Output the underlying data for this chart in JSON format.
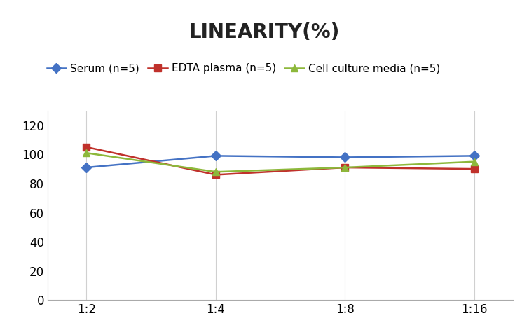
{
  "title": "LINEARITY(%)",
  "x_labels": [
    "1:2",
    "1:4",
    "1:8",
    "1:16"
  ],
  "x_positions": [
    0,
    1,
    2,
    3
  ],
  "series": [
    {
      "label": "Serum (n=5)",
      "values": [
        91,
        99,
        98,
        99
      ],
      "color": "#4472C4",
      "marker": "D"
    },
    {
      "label": "EDTA plasma (n=5)",
      "values": [
        105,
        86,
        91,
        90
      ],
      "color": "#C0312B",
      "marker": "s"
    },
    {
      "label": "Cell culture media (n=5)",
      "values": [
        101,
        88,
        91,
        95
      ],
      "color": "#8DB83B",
      "marker": "^"
    }
  ],
  "ylim": [
    0,
    130
  ],
  "yticks": [
    0,
    20,
    40,
    60,
    80,
    100,
    120
  ],
  "title_fontsize": 20,
  "legend_fontsize": 11,
  "tick_fontsize": 12,
  "background_color": "#ffffff",
  "grid_color": "#d0d0d0"
}
